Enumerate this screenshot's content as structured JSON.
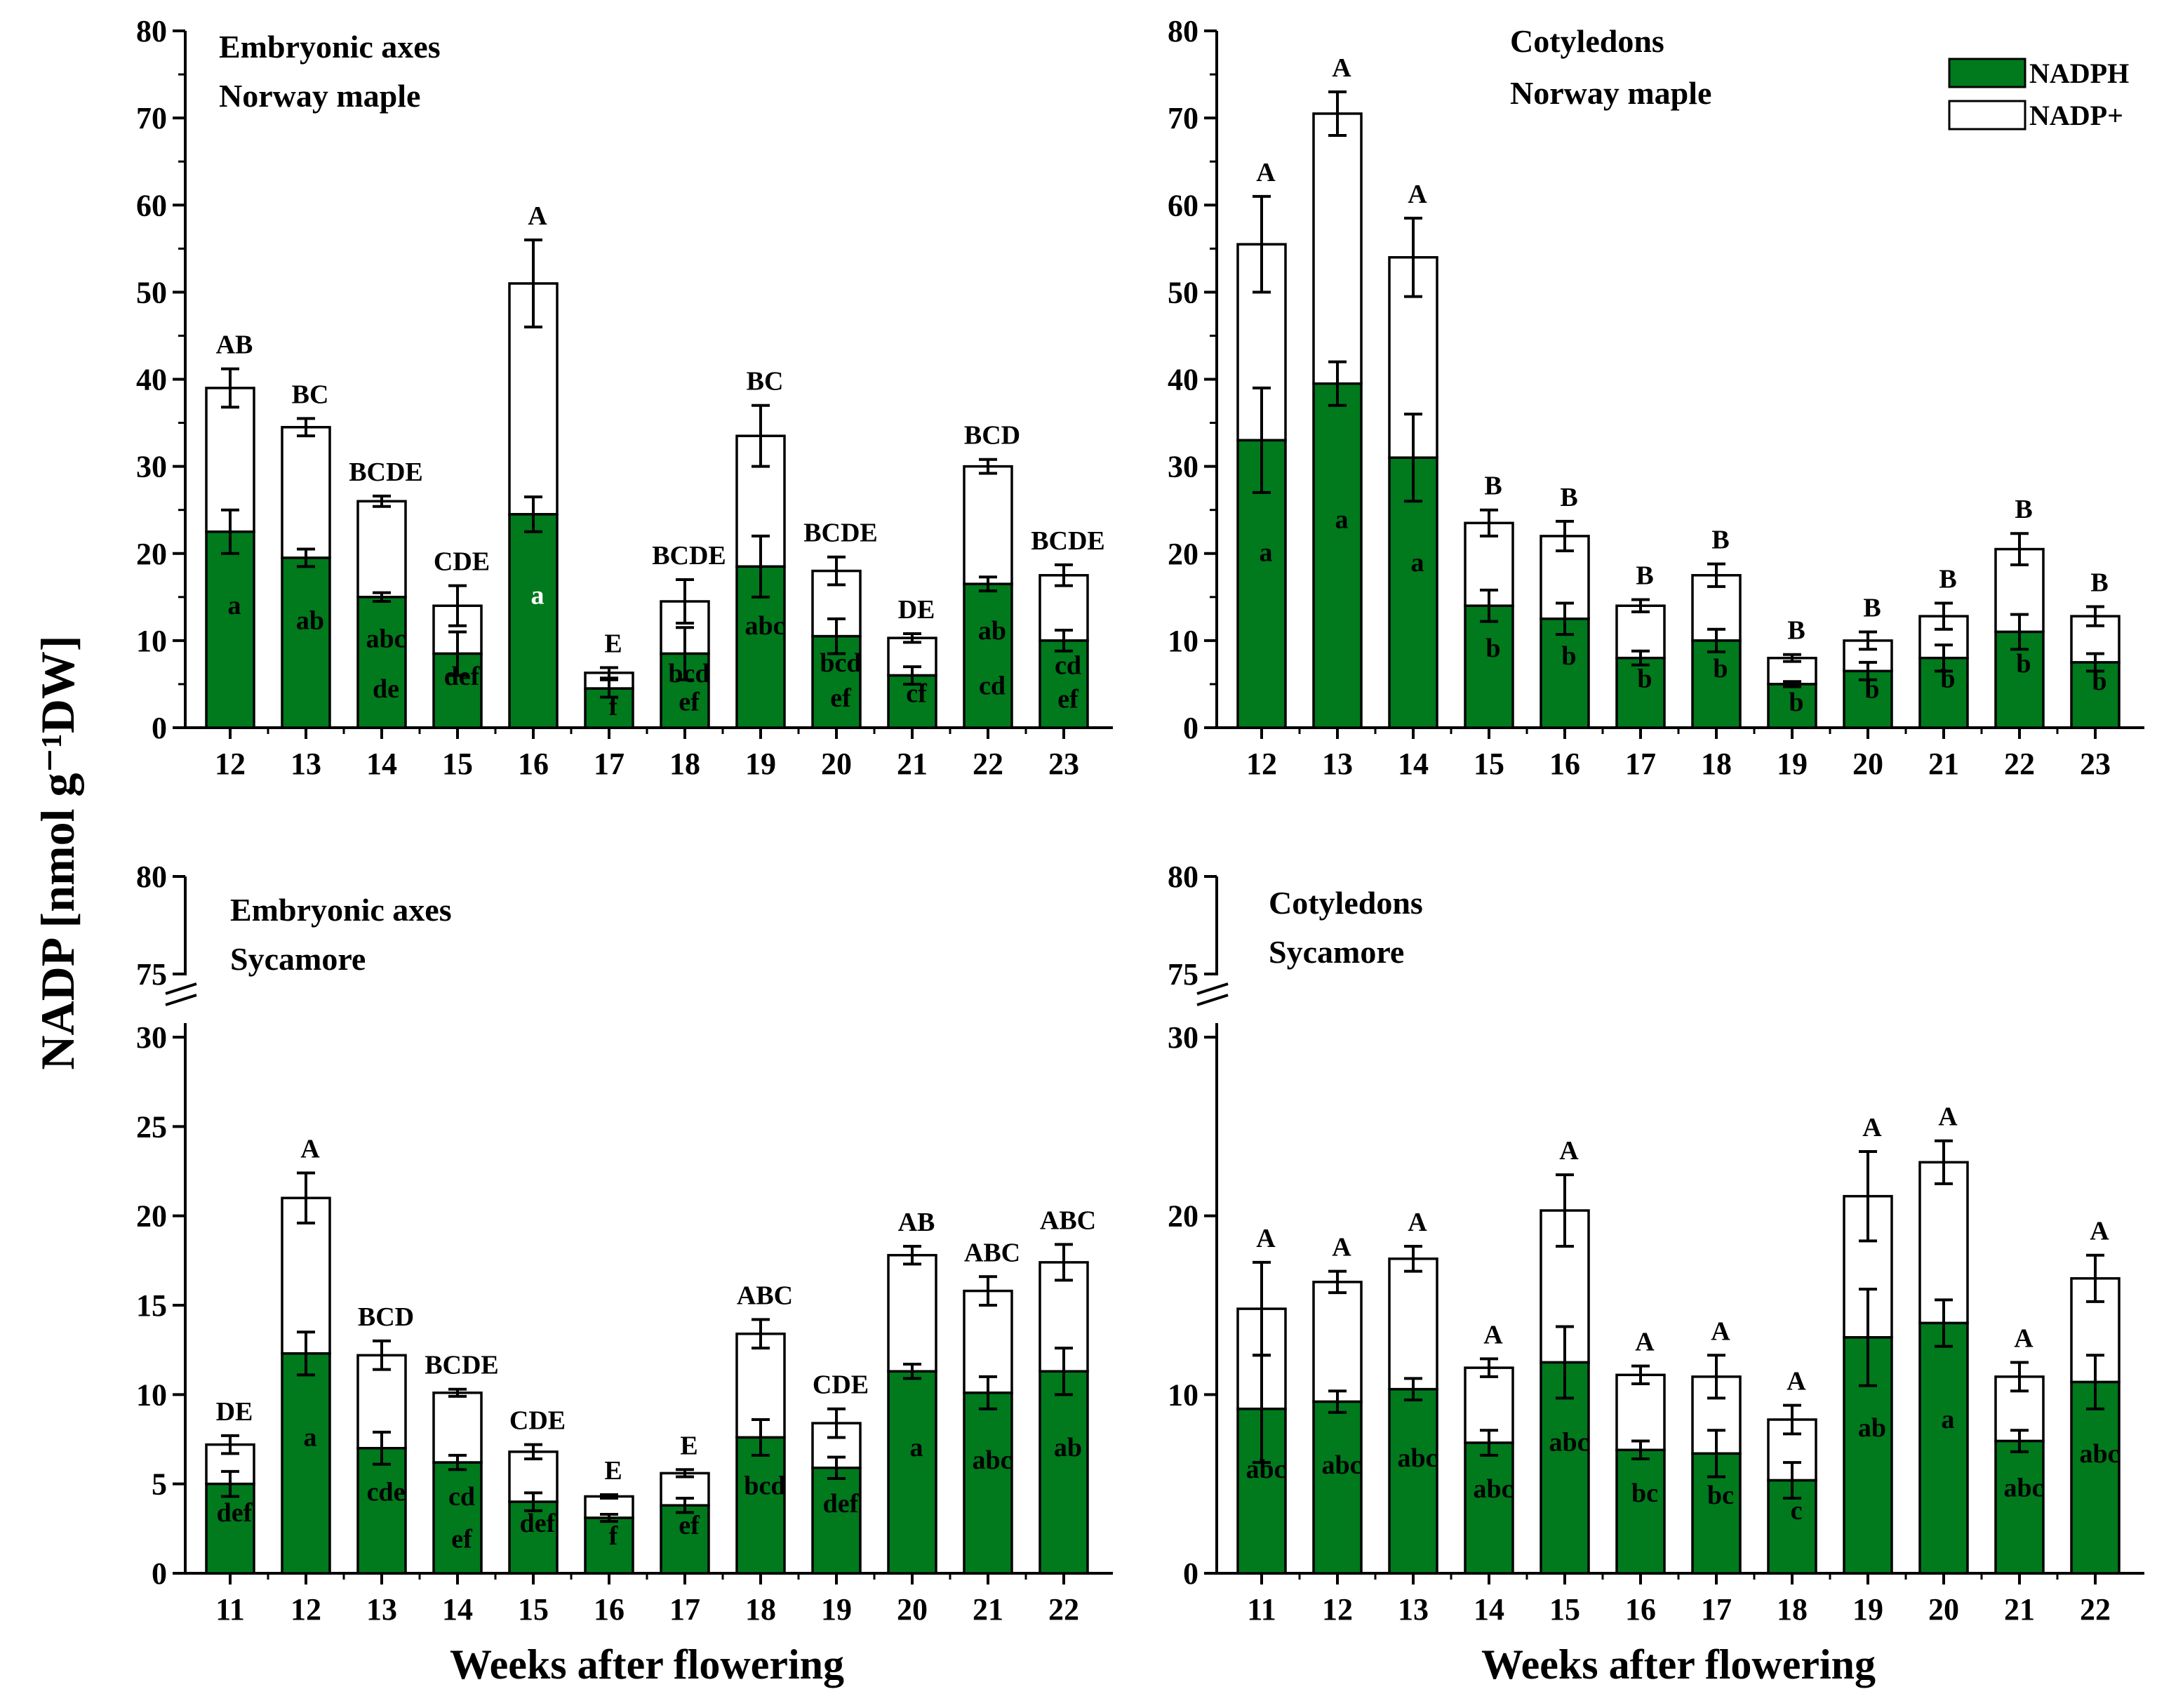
{
  "colors": {
    "nadph": "#007a1c",
    "nadp_plus": "#ffffff",
    "axis": "#000000"
  },
  "y_axis_label": "NADP [nmol g⁻¹DW]",
  "legend": {
    "items": [
      {
        "label": "NADPH",
        "color": "#007a1c"
      },
      {
        "label": "NADP+",
        "color": "#ffffff"
      }
    ]
  },
  "chart_data": [
    {
      "type": "bar",
      "stacked": true,
      "title_lines": [
        "Embryonic axes",
        "Norway maple"
      ],
      "xlabel": "",
      "ylim": [
        0,
        80
      ],
      "yticks": [
        0,
        10,
        20,
        30,
        40,
        50,
        60,
        70,
        80
      ],
      "broken_axis": false,
      "categories": [
        "12",
        "13",
        "14",
        "15",
        "16",
        "17",
        "18",
        "19",
        "20",
        "21",
        "22",
        "23"
      ],
      "series": [
        {
          "name": "NADPH",
          "values": [
            22.5,
            19.5,
            15,
            8.5,
            24.5,
            4.5,
            8.5,
            18.5,
            10.5,
            6,
            16.5,
            10
          ],
          "errors": [
            2.5,
            1,
            0.5,
            2.5,
            2,
            1,
            3,
            3.5,
            2,
            1,
            0.8,
            1.2
          ]
        },
        {
          "name": "NADP+",
          "totals": [
            39,
            34.5,
            26,
            14,
            51,
            6.3,
            14.5,
            33.5,
            18,
            10.3,
            30,
            17.5
          ],
          "errors": [
            2.2,
            1,
            0.6,
            2.3,
            5,
            0.6,
            2.5,
            3.5,
            1.6,
            0.5,
            0.8,
            1.2
          ]
        }
      ],
      "upper_letters": [
        "AB",
        "BC",
        "BCDE",
        "CDE",
        "A",
        "E",
        "BCDE",
        "BC",
        "BCDE",
        "DE",
        "BCD",
        "BCDE"
      ],
      "lower_letters": [
        [
          "a"
        ],
        [
          "ab"
        ],
        [
          "abc",
          "de"
        ],
        [
          "def"
        ],
        [
          "a"
        ],
        [
          "f"
        ],
        [
          "bcd",
          "ef"
        ],
        [
          "abc"
        ],
        [
          "bcd",
          "ef"
        ],
        [
          "cf"
        ],
        [
          "ab",
          "cd"
        ],
        [
          "cd",
          "ef"
        ]
      ]
    },
    {
      "type": "bar",
      "stacked": true,
      "title_lines": [
        "Cotyledons",
        "Norway maple"
      ],
      "xlabel": "",
      "ylim": [
        0,
        80
      ],
      "yticks": [
        0,
        10,
        20,
        30,
        40,
        50,
        60,
        70,
        80
      ],
      "broken_axis": false,
      "categories": [
        "12",
        "13",
        "14",
        "15",
        "16",
        "17",
        "18",
        "19",
        "20",
        "21",
        "22",
        "23"
      ],
      "series": [
        {
          "name": "NADPH",
          "values": [
            33,
            39.5,
            31,
            14,
            12.5,
            8,
            10,
            5,
            6.5,
            8,
            11,
            7.5
          ],
          "errors": [
            6,
            2.5,
            5,
            1.8,
            1.8,
            0.8,
            1.3,
            0.3,
            1,
            1.5,
            2,
            1
          ]
        },
        {
          "name": "NADP+",
          "totals": [
            55.5,
            70.5,
            54,
            23.5,
            22,
            14,
            17.5,
            8,
            10,
            12.8,
            20.5,
            12.8
          ],
          "errors": [
            5.5,
            2.5,
            4.5,
            1.5,
            1.7,
            0.7,
            1.3,
            0.4,
            1,
            1.5,
            1.8,
            1.1
          ]
        }
      ],
      "upper_letters": [
        "A",
        "A",
        "A",
        "B",
        "B",
        "B",
        "B",
        "B",
        "B",
        "B",
        "B",
        "B"
      ],
      "lower_letters": [
        [
          "a"
        ],
        [
          "a"
        ],
        [
          "a"
        ],
        [
          "b"
        ],
        [
          "b"
        ],
        [
          "b"
        ],
        [
          "b"
        ],
        [
          "b"
        ],
        [
          "b"
        ],
        [
          "b"
        ],
        [
          "b"
        ],
        [
          "b"
        ]
      ]
    },
    {
      "type": "bar",
      "stacked": true,
      "title_lines": [
        "Embryonic axes",
        "Sycamore"
      ],
      "xlabel": "Weeks after flowering",
      "ylim": [
        0,
        80
      ],
      "yticks": [
        0,
        5,
        10,
        15,
        20,
        25,
        30,
        75,
        80
      ],
      "broken_axis": true,
      "categories": [
        "11",
        "12",
        "13",
        "14",
        "15",
        "16",
        "17",
        "18",
        "19",
        "20",
        "21",
        "22"
      ],
      "series": [
        {
          "name": "NADPH",
          "values": [
            5,
            12.3,
            7,
            6.2,
            4,
            3.1,
            3.8,
            7.6,
            5.9,
            11.3,
            10.1,
            11.3
          ],
          "errors": [
            0.7,
            1.2,
            0.9,
            0.4,
            0.5,
            0.2,
            0.4,
            1,
            0.6,
            0.4,
            0.9,
            1.3
          ]
        },
        {
          "name": "NADP+",
          "totals": [
            7.2,
            21,
            12.2,
            10.1,
            6.8,
            4.3,
            5.6,
            13.4,
            8.4,
            17.8,
            15.8,
            17.4
          ],
          "errors": [
            0.5,
            1.4,
            0.8,
            0.2,
            0.4,
            0.1,
            0.2,
            0.8,
            0.8,
            0.5,
            0.8,
            1
          ]
        }
      ],
      "upper_letters": [
        "DE",
        "A",
        "BCD",
        "BCDE",
        "CDE",
        "E",
        "E",
        "ABC",
        "CDE",
        "AB",
        "ABC",
        "ABC"
      ],
      "lower_letters": [
        [
          "def"
        ],
        [
          "a"
        ],
        [
          "cde"
        ],
        [
          "cd",
          "ef"
        ],
        [
          "def"
        ],
        [
          "f"
        ],
        [
          "ef"
        ],
        [
          "bcd"
        ],
        [
          "def"
        ],
        [
          "a"
        ],
        [
          "abc"
        ],
        [
          "ab"
        ]
      ]
    },
    {
      "type": "bar",
      "stacked": true,
      "title_lines": [
        "Cotyledons",
        "Sycamore"
      ],
      "xlabel": "Weeks after flowering",
      "ylim": [
        0,
        80
      ],
      "yticks": [
        0,
        10,
        20,
        30,
        75,
        80
      ],
      "broken_axis": true,
      "categories": [
        "11",
        "12",
        "13",
        "14",
        "15",
        "16",
        "17",
        "18",
        "19",
        "20",
        "21",
        "22"
      ],
      "series": [
        {
          "name": "NADPH",
          "values": [
            9.2,
            9.6,
            10.3,
            7.3,
            11.8,
            6.9,
            6.7,
            5.2,
            13.2,
            14,
            7.4,
            10.7
          ],
          "errors": [
            3,
            0.6,
            0.6,
            0.7,
            2,
            0.5,
            1.3,
            1,
            2.7,
            1.3,
            0.6,
            1.5
          ]
        },
        {
          "name": "NADP+",
          "totals": [
            14.8,
            16.3,
            17.6,
            11.5,
            20.3,
            11.1,
            11,
            8.6,
            21.1,
            23,
            11,
            16.5
          ],
          "errors": [
            2.6,
            0.6,
            0.7,
            0.5,
            2,
            0.5,
            1.2,
            0.8,
            2.5,
            1.2,
            0.8,
            1.3
          ]
        }
      ],
      "upper_letters": [
        "A",
        "A",
        "A",
        "A",
        "A",
        "A",
        "A",
        "A",
        "A",
        "A",
        "A",
        "A"
      ],
      "lower_letters": [
        [
          "abc"
        ],
        [
          "abc"
        ],
        [
          "abc"
        ],
        [
          "abc"
        ],
        [
          "abc"
        ],
        [
          "bc"
        ],
        [
          "bc"
        ],
        [
          "c"
        ],
        [
          "ab"
        ],
        [
          "a"
        ],
        [
          "abc"
        ],
        [
          "abc"
        ]
      ]
    }
  ]
}
